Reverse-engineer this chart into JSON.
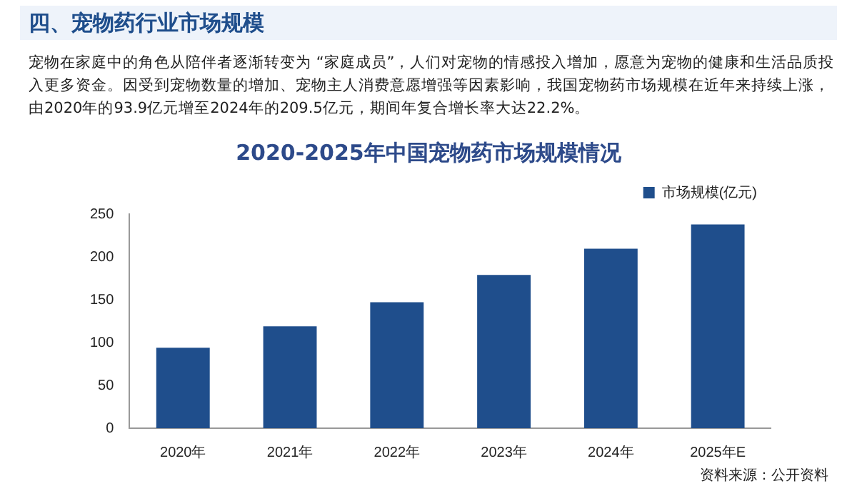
{
  "chart_data": {
    "type": "bar",
    "title": "2020-2025年中国宠物药市场规模情况",
    "annotations": [
      "四、宠物药行业市场规模",
      "宠物在家庭中的角色从陪伴者逐渐转变为 “家庭成员”，人们对宠物的情感投入增加，愿意为宠物的健康和生活品质投入更多资金。因受到宠物数量的增加、宠物主人消费意愿增强等因素影响，我国宠物药市场规模在近年来持续上涨，由2020年的93.9亿元增至2024年的209.5亿元，期间年复合增长率大达22.2%。",
      "资料来源：公开资料"
    ],
    "categories": [
      "2020年",
      "2021年",
      "2022年",
      "2023年",
      "2024年",
      "2025年E"
    ],
    "series": [
      {
        "name": "市场规模(亿元)",
        "color": "#1f4e8c",
        "values": [
          93.9,
          119,
          147,
          179,
          209.5,
          238
        ]
      }
    ],
    "ylim": [
      0,
      250
    ],
    "yticks": [
      0,
      50,
      100,
      150,
      200,
      250
    ],
    "grid": false,
    "legend": "top right"
  }
}
